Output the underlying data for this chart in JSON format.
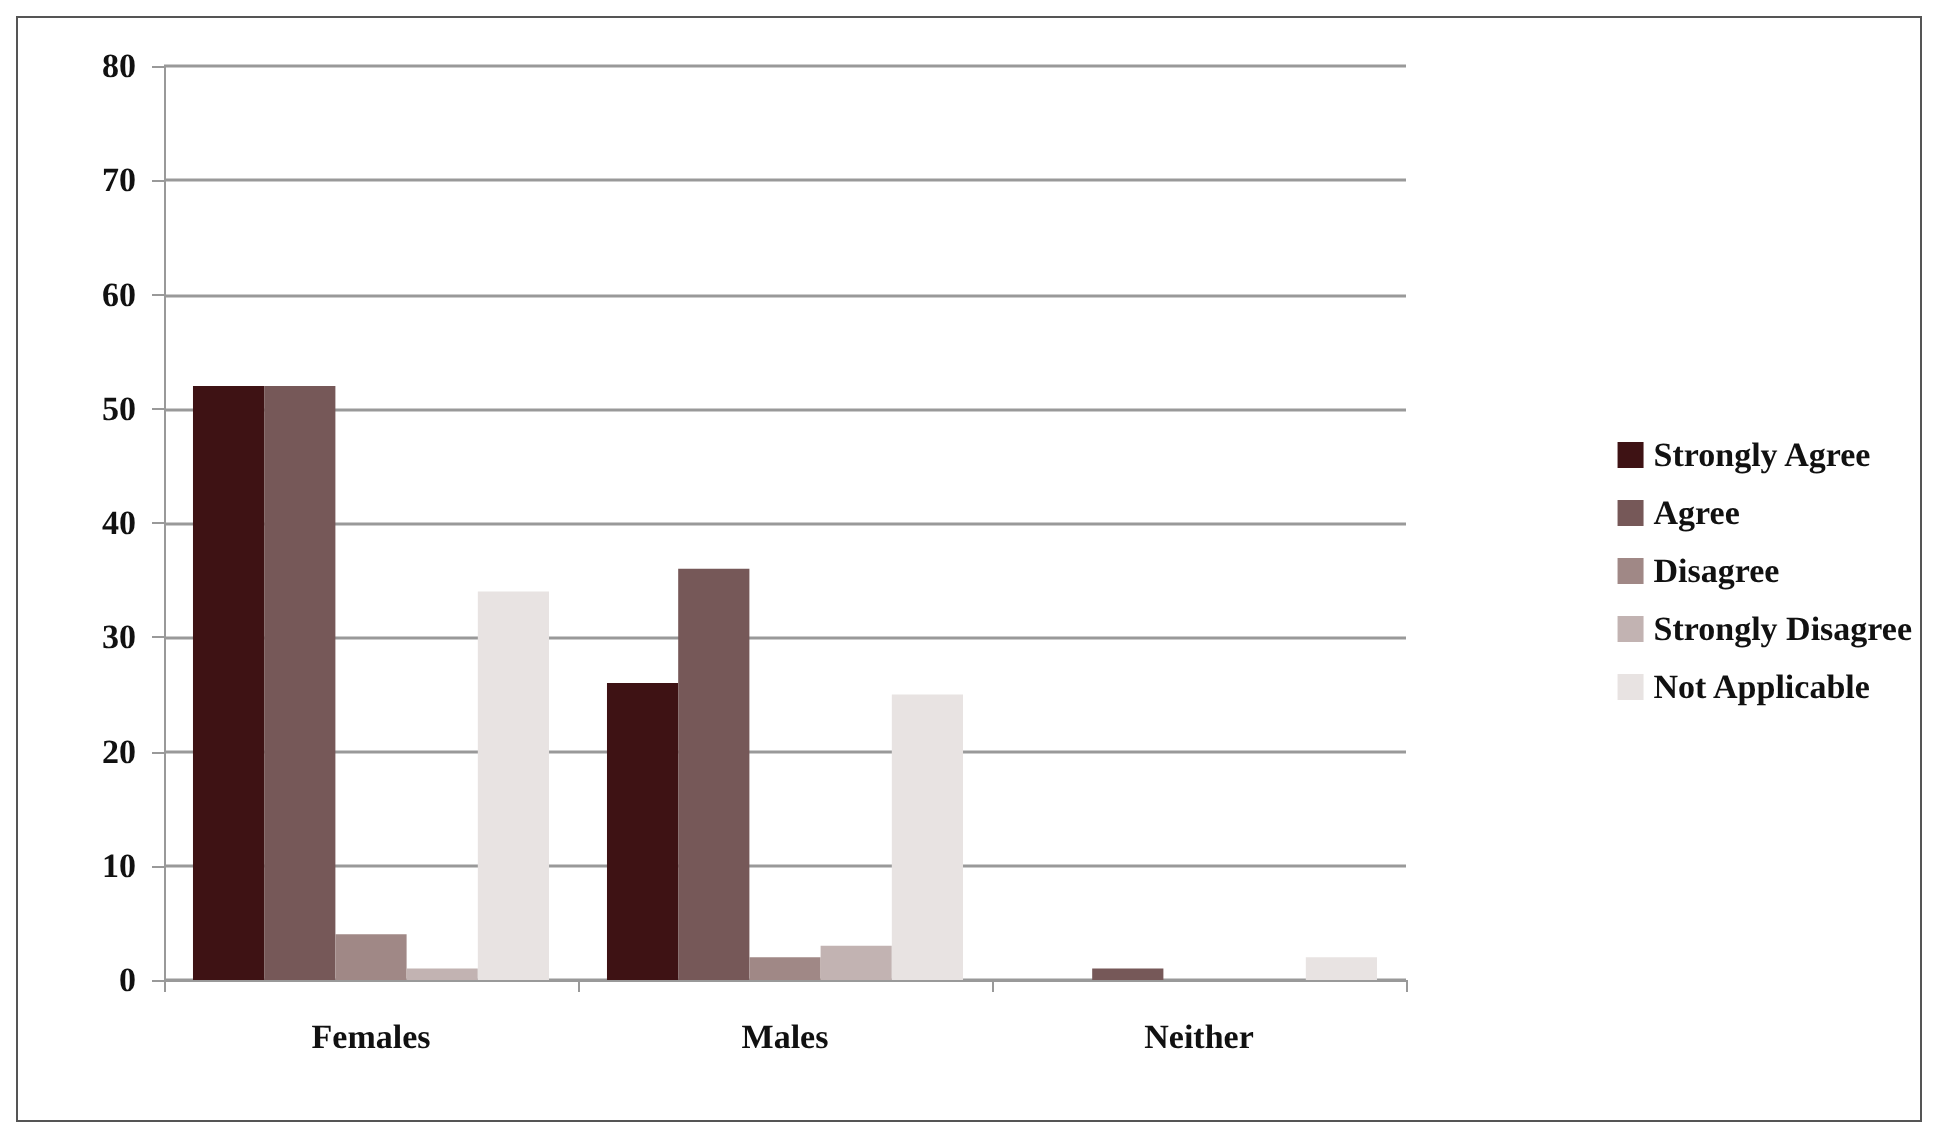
{
  "chart_data": {
    "type": "bar",
    "categories": [
      "Females",
      "Males",
      "Neither"
    ],
    "series": [
      {
        "name": "Strongly Agree",
        "color": "#3e1214",
        "values": [
          52,
          26,
          0
        ]
      },
      {
        "name": "Agree",
        "color": "#765858",
        "values": [
          52,
          36,
          1
        ]
      },
      {
        "name": "Disagree",
        "color": "#a08886",
        "values": [
          4,
          2,
          0
        ]
      },
      {
        "name": "Strongly Disagree",
        "color": "#c2b3b2",
        "values": [
          1,
          3,
          0
        ]
      },
      {
        "name": "Not Applicable",
        "color": "#e8e3e2",
        "values": [
          34,
          25,
          2
        ]
      }
    ],
    "ylim": [
      0,
      80
    ],
    "yticks": [
      0,
      10,
      20,
      30,
      40,
      50,
      60,
      70,
      80
    ],
    "grid": "y",
    "legend": "right"
  }
}
